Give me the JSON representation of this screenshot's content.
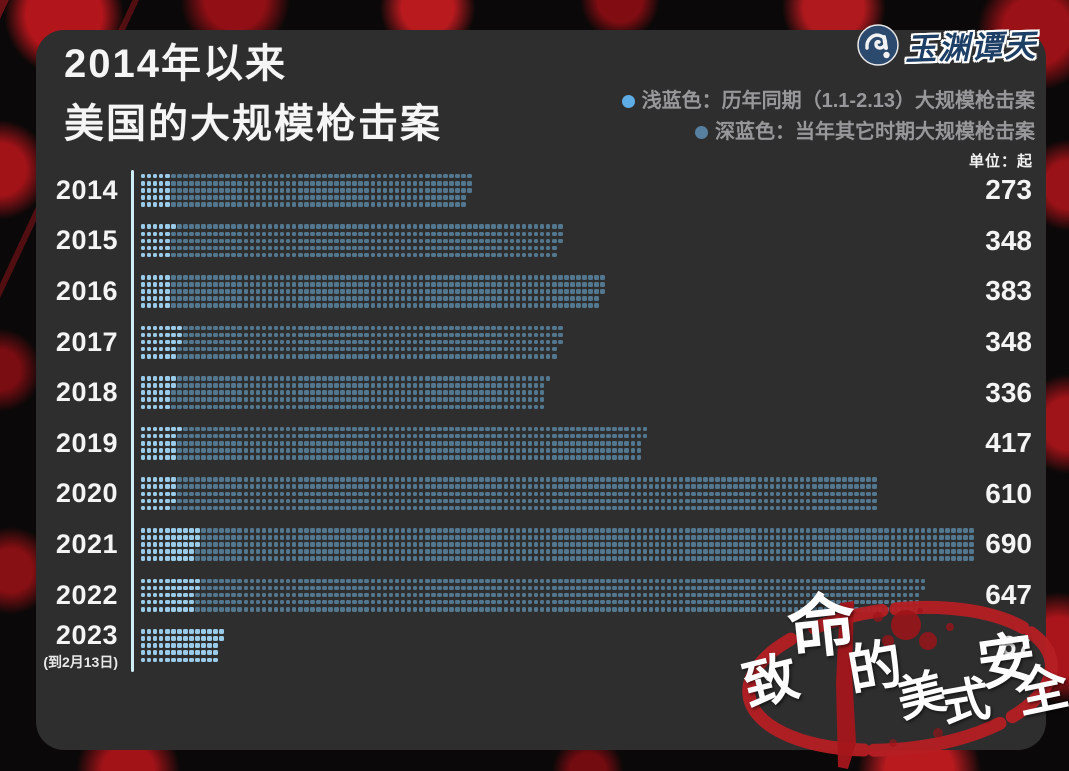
{
  "title": {
    "line1": "2014年以来",
    "line2": "美国的大规模枪击案"
  },
  "logo": {
    "name": "玉渊谭天"
  },
  "legend": [
    {
      "color": "#5eade4",
      "label": "浅蓝色：历年同期（1.1-2.13）大规模枪击案"
    },
    {
      "color": "#567fa0",
      "label": "深蓝色：当年其它时期大规模枪击案"
    }
  ],
  "unit_label": "单位：起",
  "stamp": {
    "text": "致命的美式安全",
    "red": "#b51f24"
  },
  "chart_data": {
    "type": "bar",
    "subtype": "dot-matrix",
    "title": "2014年以来美国的大规模枪击案",
    "unit": "起",
    "categories": [
      "2014",
      "2015",
      "2016",
      "2017",
      "2018",
      "2019",
      "2020",
      "2021",
      "2022",
      "2023"
    ],
    "totals": [
      273,
      348,
      383,
      348,
      336,
      417,
      610,
      690,
      647,
      67
    ],
    "series": [
      {
        "name": "历年同期（1.1-2.13）大规模枪击案",
        "color": "#9acbe9",
        "values": [
          25,
          26,
          25,
          33,
          27,
          31,
          29,
          48,
          47,
          67
        ],
        "estimated_from_pixels": true
      },
      {
        "name": "当年其它时期大规模枪击案",
        "color": "#53778f",
        "values": [
          248,
          322,
          358,
          315,
          309,
          386,
          581,
          642,
          600,
          0
        ]
      }
    ],
    "rows_per_bar": 5,
    "category_note": {
      "index": 9,
      "text": "(到2月13日)"
    },
    "legend_position": "top-right",
    "grid": false
  }
}
